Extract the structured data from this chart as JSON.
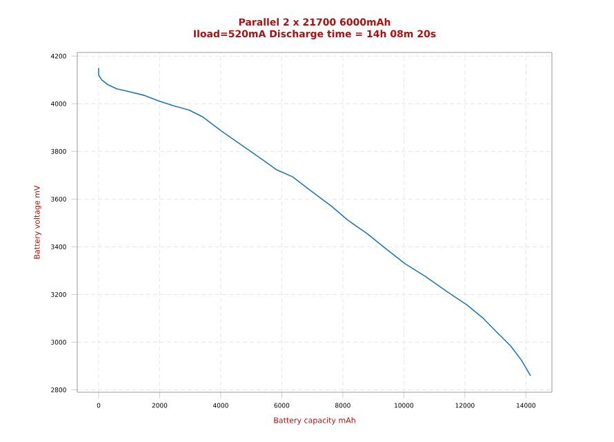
{
  "chart_data": {
    "type": "line",
    "title": "Parallel 2 x 21700 6000mAh",
    "subtitle": "Iload=520mA Discharge time = 14h 08m 20s",
    "xlabel": "Battery capacity mAh",
    "ylabel": "Battery voltage mV",
    "x": [
      0,
      0,
      100,
      300,
      600,
      935,
      1500,
      1990,
      2500,
      2970,
      3420,
      4020,
      4700,
      5375,
      5830,
      6350,
      7000,
      7630,
      8160,
      8800,
      9360,
      10040,
      10700,
      11400,
      12070,
      12600,
      13050,
      13500,
      13850,
      14150
    ],
    "series": [
      {
        "color": "#1f77b4",
        "values": [
          4150,
          4120,
          4100,
          4080,
          4062,
          4053,
          4035,
          4011,
          3990,
          3973,
          3944,
          3886,
          3825,
          3765,
          3723,
          3694,
          3630,
          3570,
          3512,
          3455,
          3397,
          3329,
          3276,
          3213,
          3156,
          3100,
          3041,
          2984,
          2925,
          2859
        ]
      }
    ],
    "xlim": [
      -700,
      14850
    ],
    "ylim": [
      2790,
      4215
    ],
    "xticks": [
      0,
      2000,
      4000,
      6000,
      8000,
      10000,
      12000,
      14000
    ],
    "yticks": [
      2800,
      3000,
      3200,
      3400,
      3600,
      3800,
      4000,
      4200
    ],
    "grid": true,
    "marker": "none",
    "line_style": "solid"
  }
}
